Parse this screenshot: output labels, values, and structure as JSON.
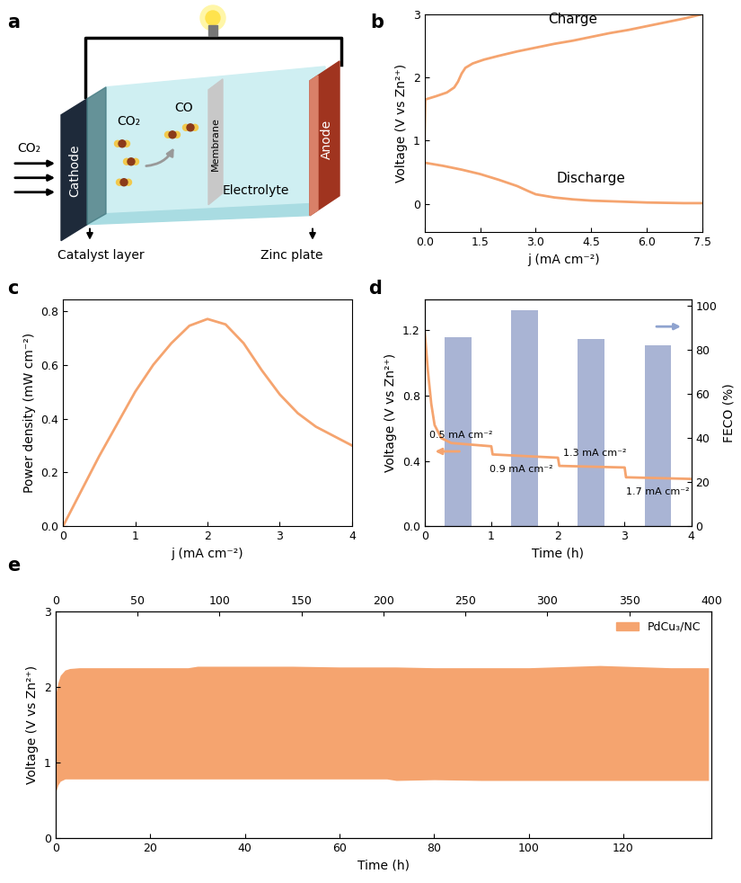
{
  "panel_labels": [
    "a",
    "b",
    "c",
    "d",
    "e"
  ],
  "diagram": {
    "texts": {
      "feed": "CO₂",
      "cathode": "Cathode",
      "catalyst_gas": "CO₂",
      "product": "CO",
      "membrane": "Membrane",
      "electrolyte": "Electrolyte",
      "anode": "Anode",
      "catalyst_layer": "Catalyst layer",
      "zinc_plate": "Zinc plate"
    }
  },
  "chart_data": [
    {
      "type": "line",
      "x_label": "j (mA cm⁻²)",
      "y_label": "Voltage (V vs Zn²⁺)",
      "xlim": [
        0,
        7.5
      ],
      "xticks": [
        {
          "value": 0,
          "label": "0.0"
        },
        1.5,
        {
          "value": 3,
          "label": "3.0"
        },
        4.5,
        {
          "value": 6,
          "label": "6.0"
        },
        7.5
      ],
      "ylim": [
        -0.45,
        3
      ],
      "yticks": [
        0,
        1,
        2,
        3
      ],
      "series": [
        {
          "name": "Charge",
          "color": "#F5A46F",
          "x": [
            0,
            0.02,
            0.3,
            0.6,
            0.8,
            0.9,
            1.0,
            1.1,
            1.3,
            1.6,
            2.0,
            2.5,
            3.0,
            3.5,
            4.0,
            4.5,
            5.0,
            5.5,
            6.0,
            6.5,
            7.0,
            7.5
          ],
          "values": [
            1.05,
            1.65,
            1.7,
            1.76,
            1.84,
            1.93,
            2.06,
            2.15,
            2.22,
            2.28,
            2.34,
            2.41,
            2.47,
            2.53,
            2.58,
            2.64,
            2.7,
            2.75,
            2.81,
            2.87,
            2.93,
            3.0
          ]
        },
        {
          "name": "Discharge",
          "color": "#F5A46F",
          "x": [
            0,
            0.5,
            1.0,
            1.5,
            2.0,
            2.5,
            2.8,
            3.0,
            3.5,
            4.0,
            4.5,
            5.0,
            6.0,
            7.0,
            7.5
          ],
          "values": [
            0.65,
            0.6,
            0.54,
            0.47,
            0.38,
            0.28,
            0.2,
            0.15,
            0.1,
            0.07,
            0.05,
            0.04,
            0.02,
            0.01,
            0.01
          ]
        }
      ]
    },
    {
      "type": "line",
      "x_label": "j (mA cm⁻²)",
      "y_label": "Power density (mW cm⁻²)",
      "xlim": [
        0,
        4
      ],
      "xticks": [
        0,
        1,
        2,
        3,
        4
      ],
      "ylim": [
        0,
        0.843
      ],
      "yticks": [
        {
          "value": 0,
          "label": "0.0"
        },
        0.2,
        0.4,
        0.6,
        0.8
      ],
      "series": [
        {
          "color": "#F5A46F",
          "x": [
            0,
            0.25,
            0.5,
            0.75,
            1.0,
            1.25,
            1.5,
            1.75,
            2.0,
            2.25,
            2.5,
            2.75,
            3.0,
            3.25,
            3.5,
            3.75,
            4.0
          ],
          "values": [
            0,
            0.13,
            0.26,
            0.38,
            0.5,
            0.6,
            0.68,
            0.745,
            0.77,
            0.75,
            0.68,
            0.58,
            0.49,
            0.42,
            0.37,
            0.335,
            0.3
          ]
        }
      ]
    },
    {
      "type": "combo",
      "x_label": "Time (h)",
      "y_label": "Voltage (V vs Zn²⁺)",
      "y2_label": "FECO (%)",
      "xlim": [
        0,
        4
      ],
      "xticks": [
        0,
        1,
        2,
        3,
        4
      ],
      "ylim": [
        0,
        1.39
      ],
      "yticks": [
        {
          "value": 0,
          "label": "0.0"
        },
        0.4,
        0.8,
        1.2
      ],
      "y2lim": [
        0,
        103
      ],
      "y2ticks": [
        0,
        20,
        40,
        60,
        80,
        100
      ],
      "series": [
        {
          "type": "bar",
          "axis": "y2",
          "color": "#A9B4D4",
          "x": [
            0.5,
            1.5,
            2.5,
            3.5
          ],
          "values": [
            86,
            98,
            85,
            82
          ]
        },
        {
          "type": "line",
          "color": "#F5A46F",
          "x": [
            0,
            0.05,
            0.1,
            0.15,
            0.25,
            0.4,
            0.7,
            1.0,
            1.02,
            1.5,
            2.0,
            2.02,
            2.5,
            3.0,
            3.02,
            3.5,
            4.0
          ],
          "values": [
            1.2,
            0.95,
            0.75,
            0.62,
            0.54,
            0.51,
            0.5,
            0.49,
            0.44,
            0.43,
            0.42,
            0.37,
            0.365,
            0.36,
            0.3,
            0.295,
            0.29
          ]
        }
      ],
      "annotations": [
        {
          "text": "0.5 mA cm⁻²",
          "x": 0.55,
          "y": 0.56
        },
        {
          "text": "0.9 mA cm⁻²",
          "x": 1.45,
          "y": 0.35
        },
        {
          "text": "1.3 mA cm⁻²",
          "x": 2.55,
          "y": 0.45
        },
        {
          "text": "1.7 mA cm⁻²",
          "x": 3.5,
          "y": 0.21
        }
      ]
    },
    {
      "type": "band",
      "x_label": "Time (h)",
      "y_label": "Voltage (V vs Zn²⁺)",
      "xlim": [
        0,
        138.6
      ],
      "xticks": [
        0,
        20,
        40,
        60,
        80,
        100,
        120
      ],
      "x2lim": [
        0,
        400
      ],
      "x2ticks": [
        0,
        50,
        100,
        150,
        200,
        250,
        300,
        350,
        400
      ],
      "ylim": [
        0,
        3
      ],
      "yticks": [
        0,
        1,
        2,
        3
      ],
      "legend": "upper right",
      "series": [
        {
          "name": "PdCu₃/NC",
          "color": "#F5A46F",
          "x": [
            0,
            0.5,
            1,
            2,
            3,
            5,
            10,
            20,
            28,
            30,
            40,
            50,
            60,
            70,
            72,
            80,
            90,
            100,
            110,
            115,
            120,
            130,
            138
          ],
          "high": [
            1.9,
            2.05,
            2.15,
            2.22,
            2.24,
            2.25,
            2.25,
            2.25,
            2.25,
            2.27,
            2.27,
            2.27,
            2.26,
            2.26,
            2.26,
            2.25,
            2.25,
            2.25,
            2.27,
            2.28,
            2.27,
            2.25,
            2.25
          ],
          "low": [
            0.6,
            0.7,
            0.75,
            0.78,
            0.78,
            0.78,
            0.78,
            0.78,
            0.78,
            0.78,
            0.78,
            0.78,
            0.78,
            0.78,
            0.76,
            0.77,
            0.76,
            0.76,
            0.76,
            0.76,
            0.76,
            0.76,
            0.76
          ]
        }
      ]
    }
  ]
}
